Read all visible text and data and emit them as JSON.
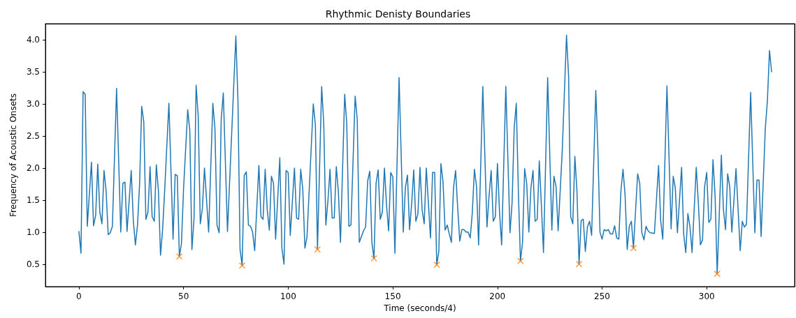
{
  "chart_data": {
    "type": "line",
    "title": "Rhythmic Denisty Boundaries",
    "xlabel": "Time (seconds/4)",
    "ylabel": "Frequency of Acoustic Onsets",
    "xlim": [
      -16,
      342
    ],
    "xticks": [
      0,
      50,
      100,
      150,
      200,
      250,
      300
    ],
    "ylim": [
      0.15,
      4.25
    ],
    "yticks": [
      {
        "value": 0.5,
        "label": "0.5"
      },
      {
        "value": 1,
        "label": "1.0"
      },
      {
        "value": 1.5,
        "label": "1.5"
      },
      {
        "value": 2,
        "label": "2.0"
      },
      {
        "value": 2.5,
        "label": "2.5"
      },
      {
        "value": 3,
        "label": "3.0"
      },
      {
        "value": 3.5,
        "label": "3.5"
      },
      {
        "value": 4,
        "label": "4.0"
      }
    ],
    "grid": false,
    "series": [
      {
        "color": "#1f77b4",
        "marker": "none",
        "line_style": "solid",
        "x": [
          0,
          1,
          2,
          3,
          4,
          6,
          7,
          8,
          9,
          10,
          11,
          12,
          13,
          14,
          15,
          16,
          18,
          20,
          21,
          22,
          23,
          25,
          26,
          27,
          28,
          29,
          30,
          31,
          32,
          33,
          34,
          35,
          36,
          37,
          38,
          39,
          40,
          41,
          43,
          45,
          46,
          47,
          48,
          49,
          50,
          52,
          53,
          54,
          55,
          56,
          57,
          58,
          59,
          60,
          62,
          64,
          65,
          66,
          67,
          68,
          69,
          71,
          75,
          76,
          77,
          78,
          79,
          80,
          81,
          82,
          83,
          84,
          86,
          87,
          88,
          89,
          90,
          91,
          92,
          93,
          94,
          96,
          97,
          98,
          99,
          100,
          101,
          103,
          104,
          105,
          106,
          107,
          108,
          109,
          112,
          113,
          114,
          116,
          117,
          118,
          119,
          120,
          121,
          122,
          123,
          124,
          125,
          127,
          128,
          129,
          130,
          132,
          133,
          134,
          135,
          136,
          137,
          138,
          139,
          140,
          141,
          142,
          143,
          144,
          145,
          146,
          147,
          148,
          149,
          150,
          151,
          153,
          155,
          156,
          157,
          158,
          159,
          160,
          161,
          162,
          163,
          164,
          165,
          166,
          168,
          169,
          170,
          171,
          172,
          173,
          174,
          175,
          176,
          177,
          178,
          179,
          180,
          181,
          182,
          183,
          184,
          185,
          186,
          187,
          188,
          189,
          190,
          191,
          193,
          195,
          196,
          197,
          198,
          199,
          200,
          201,
          202,
          204,
          206,
          207,
          208,
          209,
          210,
          211,
          212,
          213,
          214,
          215,
          216,
          217,
          218,
          219,
          220,
          221,
          222,
          224,
          226,
          227,
          228,
          229,
          231,
          233,
          234,
          235,
          236,
          237,
          238,
          239,
          240,
          241,
          242,
          243,
          244,
          245,
          247,
          248,
          249,
          250,
          251,
          252,
          253,
          254,
          255,
          256,
          257,
          258,
          259,
          260,
          261,
          262,
          263,
          264,
          265,
          267,
          268,
          269,
          270,
          271,
          272,
          273,
          275,
          277,
          278,
          279,
          281,
          283,
          284,
          285,
          286,
          288,
          289,
          290,
          291,
          292,
          293,
          295,
          296,
          297,
          298,
          299,
          300,
          301,
          302,
          303,
          304,
          305,
          307,
          308,
          309,
          310,
          311,
          312,
          314,
          315,
          316,
          317,
          318,
          319,
          321,
          323,
          324,
          325,
          326,
          328,
          329,
          330,
          331
        ],
        "values": [
          1.01,
          0.67,
          3.19,
          3.15,
          1.09,
          2.09,
          1.1,
          1.26,
          2.06,
          1.31,
          1.13,
          1.96,
          1.64,
          0.96,
          0.99,
          1.09,
          3.24,
          1.0,
          1.76,
          1.78,
          1.01,
          1.96,
          1.18,
          0.8,
          1.11,
          1.75,
          2.96,
          2.72,
          1.2,
          1.31,
          2.02,
          1.24,
          1.17,
          2.05,
          1.64,
          0.64,
          1.04,
          1.66,
          3.01,
          0.89,
          1.9,
          1.88,
          0.62,
          0.82,
          1.67,
          2.91,
          2.58,
          0.73,
          1.2,
          3.29,
          2.82,
          1.13,
          1.37,
          2.0,
          1.0,
          3.01,
          2.62,
          1.11,
          0.99,
          2.76,
          3.17,
          1.01,
          4.06,
          3.05,
          0.73,
          0.48,
          1.88,
          1.94,
          1.11,
          1.09,
          1.0,
          0.71,
          2.04,
          1.24,
          1.2,
          1.98,
          1.35,
          1.03,
          1.87,
          1.76,
          0.89,
          2.16,
          0.75,
          0.5,
          1.96,
          1.93,
          0.95,
          2.0,
          1.22,
          1.2,
          1.98,
          1.66,
          0.75,
          0.93,
          3.0,
          2.67,
          0.73,
          3.27,
          2.69,
          1.11,
          1.49,
          1.98,
          1.22,
          1.22,
          2.02,
          1.62,
          0.84,
          3.15,
          2.69,
          1.09,
          1.11,
          3.12,
          2.76,
          0.84,
          0.93,
          1.02,
          1.08,
          1.8,
          1.95,
          0.84,
          0.59,
          1.76,
          1.97,
          1.2,
          1.31,
          2.0,
          1.42,
          1.02,
          1.93,
          1.86,
          0.67,
          3.41,
          1.0,
          1.69,
          1.89,
          1.04,
          1.44,
          1.97,
          1.17,
          1.28,
          2.01,
          1.35,
          1.13,
          2.0,
          0.91,
          1.93,
          1.93,
          0.49,
          0.7,
          2.07,
          1.78,
          1.03,
          1.11,
          0.97,
          0.84,
          1.69,
          1.96,
          1.38,
          0.86,
          1.04,
          1.04,
          1.0,
          1.0,
          0.91,
          1.31,
          1.98,
          1.71,
          0.8,
          3.27,
          1.08,
          1.57,
          1.96,
          1.17,
          1.24,
          2.07,
          1.31,
          0.8,
          3.27,
          0.99,
          1.46,
          2.62,
          3.01,
          1.64,
          0.55,
          0.84,
          1.99,
          1.75,
          1.0,
          1.69,
          1.96,
          1.17,
          1.2,
          2.11,
          1.42,
          0.68,
          3.41,
          1.03,
          1.87,
          1.71,
          1.02,
          2.29,
          4.07,
          3.43,
          1.24,
          1.13,
          2.18,
          1.64,
          0.5,
          1.18,
          1.2,
          0.7,
          1.08,
          1.17,
          0.95,
          3.21,
          2.29,
          1.0,
          0.89,
          1.04,
          1.02,
          1.04,
          0.97,
          0.97,
          1.1,
          0.91,
          0.89,
          1.64,
          1.98,
          1.57,
          0.73,
          1.09,
          1.17,
          0.75,
          1.91,
          1.76,
          0.99,
          0.88,
          1.09,
          1.02,
          0.99,
          0.98,
          2.04,
          1.18,
          0.89,
          3.28,
          1.05,
          1.87,
          1.69,
          0.99,
          2.01,
          0.97,
          0.68,
          1.29,
          1.08,
          0.68,
          2.01,
          1.46,
          0.8,
          0.88,
          1.71,
          1.93,
          1.15,
          1.2,
          2.13,
          1.57,
          0.35,
          2.2,
          1.35,
          1.04,
          1.91,
          1.71,
          1.0,
          1.99,
          1.35,
          0.71,
          1.17,
          1.08,
          1.12,
          3.18,
          0.99,
          1.81,
          1.81,
          0.93,
          2.62,
          3.05,
          3.83,
          3.5
        ]
      },
      {
        "type": "scatter",
        "color": "#ff7f0e",
        "marker": "cross",
        "x": [
          48,
          78,
          114,
          141,
          171,
          211,
          239,
          265,
          305
        ],
        "values": [
          0.62,
          0.48,
          0.73,
          0.59,
          0.49,
          0.55,
          0.5,
          0.75,
          0.35
        ]
      }
    ]
  }
}
